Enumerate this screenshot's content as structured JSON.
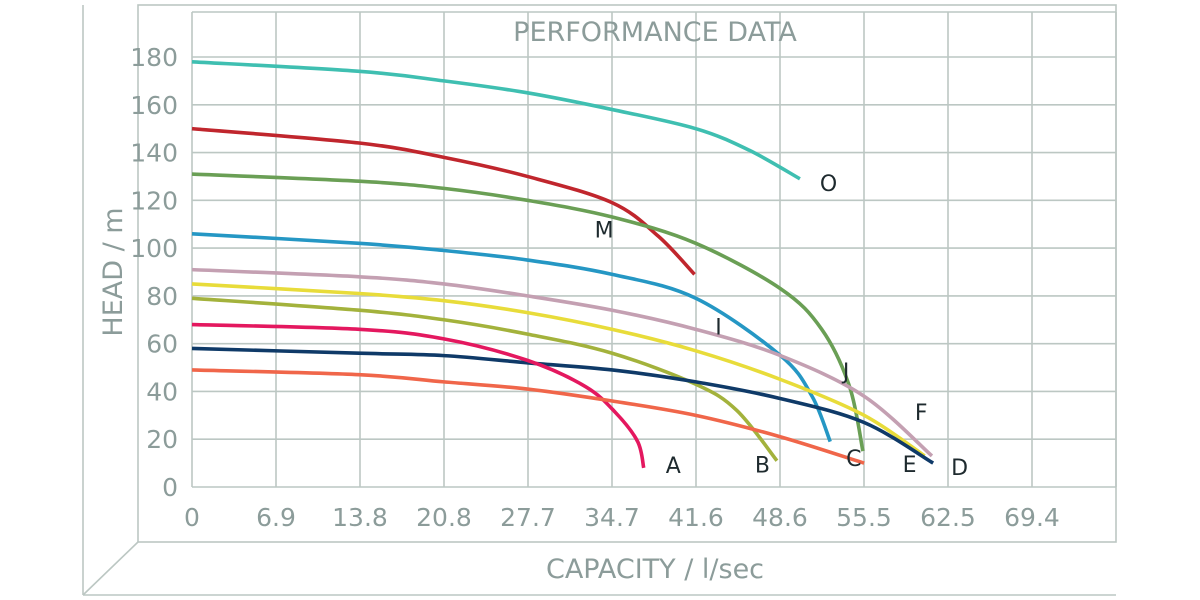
{
  "chart_data": {
    "type": "line",
    "title": "PERFORMANCE DATA",
    "xlabel": "CAPACITY / l/sec",
    "ylabel": "HEAD / m",
    "xlim": [
      0,
      76.3
    ],
    "ylim": [
      0,
      180
    ],
    "xticks": [
      "0",
      "6.9",
      "13.8",
      "20.8",
      "27.7",
      "34.7",
      "41.6",
      "48.6",
      "55.5",
      "62.5",
      "69.4"
    ],
    "yticks": [
      "0",
      "20",
      "40",
      "60",
      "80",
      "100",
      "120",
      "140",
      "160",
      "180"
    ],
    "grid": true,
    "series": [
      {
        "name": "O",
        "color": "#3fbfb1",
        "x": [
          0,
          13.8,
          20.8,
          27.7,
          34.7,
          41.6,
          46,
          50.2
        ],
        "y": [
          178,
          174,
          170,
          165,
          158,
          150,
          141,
          129
        ]
      },
      {
        "name": "M",
        "color": "#c0262d",
        "x": [
          0,
          13.8,
          20.8,
          27.7,
          34.7,
          38.5,
          41.5
        ],
        "y": [
          150,
          144,
          138,
          130,
          119,
          105,
          89
        ]
      },
      {
        "name": "J",
        "color": "#6a9f55",
        "x": [
          0,
          13.8,
          20.8,
          27.7,
          34.7,
          41.6,
          48.6,
          52,
          54.3,
          55.4
        ],
        "y": [
          131,
          128,
          125,
          120,
          113,
          102,
          83,
          66,
          42,
          15
        ]
      },
      {
        "name": "I",
        "color": "#2597c4",
        "x": [
          0,
          13.8,
          20.8,
          27.7,
          34.7,
          41.6,
          48.6,
          51.2,
          52.7
        ],
        "y": [
          106,
          102,
          99,
          95,
          89,
          79,
          55,
          38,
          19
        ]
      },
      {
        "name": "F",
        "color": "#c4a0b2",
        "x": [
          0,
          13.8,
          20.8,
          27.7,
          34.7,
          41.6,
          48.6,
          55.5,
          61.1
        ],
        "y": [
          91,
          88,
          85,
          80,
          74,
          66,
          55,
          38,
          13
        ]
      },
      {
        "name": "E",
        "color": "#e8dc3a",
        "x": [
          0,
          13.8,
          20.8,
          27.7,
          34.7,
          41.6,
          48.6,
          55.5,
          60.5
        ],
        "y": [
          85,
          81,
          78,
          73,
          66,
          57,
          45,
          30,
          13
        ]
      },
      {
        "name": "B",
        "color": "#a3b23c",
        "x": [
          0,
          13.8,
          20.8,
          27.7,
          34.7,
          41.6,
          45,
          48.3
        ],
        "y": [
          79,
          74,
          70,
          64,
          56,
          43,
          32,
          11
        ]
      },
      {
        "name": "D",
        "color": "#0f3a68",
        "x": [
          0,
          13.8,
          20.8,
          27.7,
          34.7,
          41.6,
          48.6,
          55.5,
          61.2
        ],
        "y": [
          58,
          56,
          55,
          52,
          49,
          44,
          37,
          27,
          10
        ]
      },
      {
        "name": "A",
        "color": "#e4185f",
        "x": [
          0,
          13.8,
          20.8,
          27.7,
          32.5,
          35,
          36.8,
          37.3
        ],
        "y": [
          68,
          66,
          62,
          53,
          42,
          31,
          19,
          8
        ]
      },
      {
        "name": "C",
        "color": "#f0664a",
        "x": [
          0,
          13.8,
          20.8,
          27.7,
          34.7,
          41.6,
          48.6,
          55.5
        ],
        "y": [
          49,
          47,
          44,
          41,
          36,
          30,
          21,
          10
        ]
      }
    ]
  }
}
